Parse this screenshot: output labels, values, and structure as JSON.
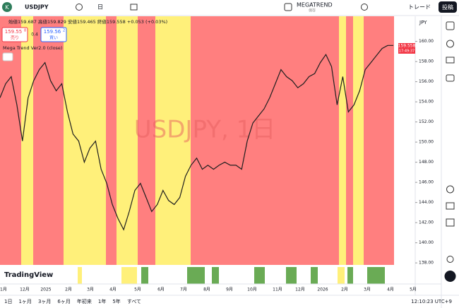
{
  "toolbar": {
    "logo": "K",
    "symbol": "USDJPY",
    "interval": "日",
    "indicator": "MEGATREND",
    "indicator_status": "保存",
    "trade": "トレード",
    "post": "投稿"
  },
  "legend": {
    "ohlc": [
      "始値159.687",
      "高値159.829",
      "安値159.465",
      "終値159.558",
      "+0.053 (+0.03%)"
    ],
    "sell": {
      "price": "159.55",
      "pip": "8",
      "label": "売り"
    },
    "spread": "0.4",
    "buy": {
      "price": "159.56",
      "pip": "2",
      "label": "買い"
    },
    "indicator_label": "Mega Trend Ver2.0 (close)"
  },
  "chart_data": {
    "type": "line",
    "watermark": "USDJPY, 1日",
    "y_axis_label": "JPY",
    "color": "#1f1f1f",
    "values": [
      154.4,
      155.8,
      156.5,
      153.7,
      150.1,
      154.4,
      156.1,
      157.2,
      157.9,
      156.1,
      155.1,
      155.8,
      153.0,
      150.8,
      150.1,
      148.0,
      149.4,
      150.1,
      147.3,
      145.9,
      143.8,
      142.4,
      141.3,
      143.1,
      145.2,
      145.9,
      144.5,
      143.1,
      143.8,
      145.2,
      144.2,
      143.8,
      144.5,
      146.6,
      147.7,
      148.4,
      147.3,
      147.7,
      147.3,
      147.7,
      148.0,
      147.7,
      147.7,
      147.3,
      150.1,
      151.9,
      152.6,
      153.3,
      154.4,
      155.8,
      157.2,
      156.5,
      156.1,
      155.4,
      155.8,
      156.5,
      156.8,
      157.9,
      158.7,
      157.5,
      153.7,
      156.5,
      153.0,
      153.7,
      155.1,
      157.2,
      157.9,
      158.6,
      159.3,
      159.6,
      159.6
    ],
    "ylim": [
      137.8,
      162.5
    ],
    "yticks": [
      {
        "value": 138,
        "label": "138.00"
      },
      {
        "value": 140,
        "label": "140.00"
      },
      {
        "value": 142,
        "label": "142.00"
      },
      {
        "value": 144,
        "label": "144.00"
      },
      {
        "value": 146,
        "label": "146.00"
      },
      {
        "value": 148,
        "label": "148.00"
      },
      {
        "value": 150,
        "label": "150.00"
      },
      {
        "value": 152,
        "label": "152.00"
      },
      {
        "value": 154,
        "label": "154.00"
      },
      {
        "value": 156,
        "label": "156.00"
      },
      {
        "value": 158,
        "label": "158.00"
      },
      {
        "value": 160,
        "label": "160.00"
      }
    ],
    "x_labels": [
      "11月",
      "12月",
      "2025",
      "2月",
      "3月",
      "4月",
      "5月",
      "6月",
      "7月",
      "8月",
      "9月",
      "10月",
      "11月",
      "12月",
      "2026",
      "2月",
      "3月",
      "4月",
      "5月"
    ],
    "last_price": "159.558",
    "countdown": "17:49:37",
    "brand": "TradingView"
  },
  "bottom_bar": {
    "ranges": [
      "1日",
      "1ヶ月",
      "3ヶ月",
      "6ヶ月",
      "年初来",
      "1年",
      "5年",
      "すべて"
    ],
    "clock": "12:10:23 UTC+9"
  }
}
